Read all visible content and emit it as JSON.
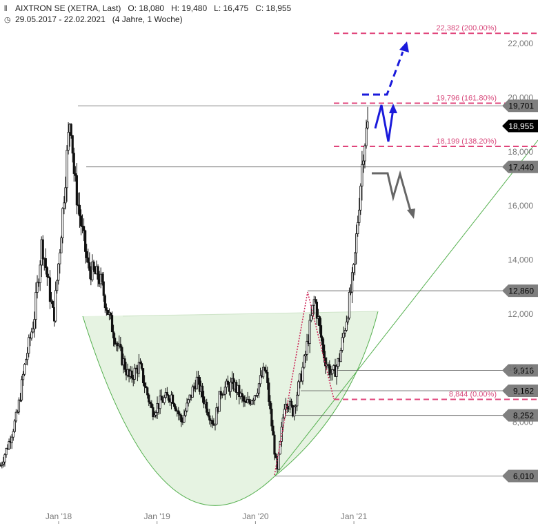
{
  "header": {
    "symbol_icon": "candles-icon",
    "title": "AIXTRON SE (XETRA, Last)",
    "open": "O: 18,080",
    "high": "H: 19,480",
    "low": "L: 16,475",
    "close": "C: 18,955",
    "range_icon": "clock-icon",
    "date_range": "29.05.2017 - 22.02.2021",
    "period": "(4 Jahre, 1 Woche)"
  },
  "chart_data": {
    "type": "candlestick",
    "x_axis": {
      "ticks": [
        {
          "label": "Jan '18",
          "t": 2018.0
        },
        {
          "label": "Jan '19",
          "t": 2019.0
        },
        {
          "label": "Jan '20",
          "t": 2020.0
        },
        {
          "label": "Jan '21",
          "t": 2021.0
        }
      ],
      "range": [
        2017.41,
        2021.14
      ]
    },
    "y_axis": {
      "ticks": [
        "22,000",
        "20,000",
        "18,000",
        "16,000",
        "14,000",
        "12,000",
        "10,000",
        "8,000"
      ],
      "range": [
        5.4,
        23.0
      ]
    },
    "price_path": [
      [
        2017.41,
        6.4
      ],
      [
        2017.5,
        7.3
      ],
      [
        2017.58,
        8.3
      ],
      [
        2017.66,
        10.2
      ],
      [
        2017.75,
        11.8
      ],
      [
        2017.83,
        14.7
      ],
      [
        2017.9,
        13.0
      ],
      [
        2017.95,
        11.8
      ],
      [
        2018.02,
        14.8
      ],
      [
        2018.12,
        19.5
      ],
      [
        2018.16,
        17.0
      ],
      [
        2018.22,
        15.5
      ],
      [
        2018.3,
        13.7
      ],
      [
        2018.42,
        13.3
      ],
      [
        2018.52,
        11.8
      ],
      [
        2018.62,
        10.6
      ],
      [
        2018.72,
        9.6
      ],
      [
        2018.82,
        10.1
      ],
      [
        2018.95,
        8.4
      ],
      [
        2019.05,
        8.8
      ],
      [
        2019.15,
        9.0
      ],
      [
        2019.25,
        8.0
      ],
      [
        2019.4,
        9.6
      ],
      [
        2019.5,
        8.6
      ],
      [
        2019.58,
        7.9
      ],
      [
        2019.65,
        9.2
      ],
      [
        2019.78,
        9.4
      ],
      [
        2019.9,
        8.6
      ],
      [
        2020.0,
        9.1
      ],
      [
        2020.1,
        10.0
      ],
      [
        2020.22,
        6.1
      ],
      [
        2020.3,
        8.9
      ],
      [
        2020.38,
        8.4
      ],
      [
        2020.5,
        10.3
      ],
      [
        2020.6,
        12.6
      ],
      [
        2020.7,
        10.4
      ],
      [
        2020.78,
        9.7
      ],
      [
        2020.85,
        10.3
      ],
      [
        2020.95,
        12.4
      ],
      [
        2021.0,
        13.6
      ],
      [
        2021.06,
        16.5
      ],
      [
        2021.1,
        18.3
      ],
      [
        2021.14,
        18.95
      ]
    ],
    "horizontal_levels": [
      {
        "value": 19.701,
        "label": "19,701",
        "style": "solid"
      },
      {
        "value": 17.44,
        "label": "17,440",
        "style": "solid"
      },
      {
        "value": 12.86,
        "label": "12,860",
        "style": "solid"
      },
      {
        "value": 9.916,
        "label": "9,916",
        "style": "solid"
      },
      {
        "value": 9.162,
        "label": "9,162",
        "style": "solid"
      },
      {
        "value": 8.252,
        "label": "8,252",
        "style": "solid"
      },
      {
        "value": 6.01,
        "label": "6,010",
        "style": "solid"
      }
    ],
    "fibonacci_levels": [
      {
        "value": 22.382,
        "label": "22,382 (200.00%)"
      },
      {
        "value": 19.796,
        "label": "19,796 (161.80%)"
      },
      {
        "value": 18.199,
        "label": "18,199 (138.20%)"
      },
      {
        "value": 8.844,
        "label": "8,844 (0.00%)"
      }
    ],
    "last_price": {
      "value": 18.955,
      "label": "18,955"
    },
    "colors": {
      "candle": "#111111",
      "level_line": "#555555",
      "level_badge": "#7f7f7f",
      "fib": "#e0457b",
      "fib_text": "#d8497c",
      "trend": "#55b04f",
      "cup_fill": "#e6f3e2",
      "bull_arrow": "#1a1adb",
      "bear_arrow": "#666666",
      "zigzag": "#cc2255",
      "grid_label": "#777777"
    }
  }
}
